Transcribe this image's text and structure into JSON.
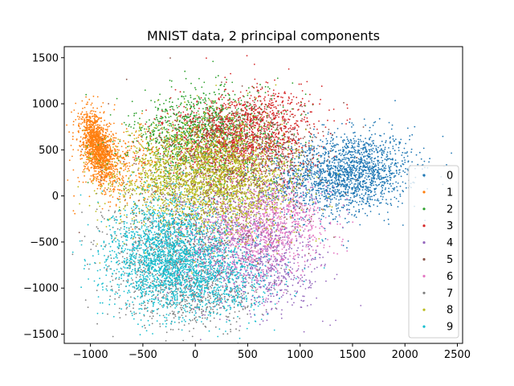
{
  "chart_data": {
    "type": "scatter",
    "title": "MNIST data, 2 principal components",
    "xlabel": "",
    "ylabel": "",
    "xlim": [
      -1250,
      2550
    ],
    "ylim": [
      -1600,
      1620
    ],
    "xticks": [
      -1000,
      -500,
      0,
      500,
      1000,
      1500,
      2000,
      2500
    ],
    "yticks": [
      -1500,
      -1000,
      -500,
      0,
      500,
      1000,
      1500
    ],
    "xtick_labels": [
      "−1000",
      "−500",
      "0",
      "500",
      "1000",
      "1500",
      "2000",
      "2500"
    ],
    "ytick_labels": [
      "−1500",
      "−1000",
      "−500",
      "0",
      "500",
      "1000",
      "1500"
    ],
    "grid": false,
    "legend_position": "lower-right",
    "series": [
      {
        "name": "0",
        "color": "#1f77b4",
        "clusters": [
          {
            "cx": 1500,
            "cy": 260,
            "sx": 300,
            "sy": 210,
            "n": 1500,
            "rot": 0.12
          },
          {
            "cx": 1050,
            "cy": 150,
            "sx": 280,
            "sy": 260,
            "n": 400,
            "rot": 0
          }
        ]
      },
      {
        "name": "1",
        "color": "#ff7f0e",
        "clusters": [
          {
            "cx": -930,
            "cy": 520,
            "sx": 75,
            "sy": 190,
            "n": 1300,
            "rot": 0.25
          },
          {
            "cx": -720,
            "cy": 350,
            "sx": 180,
            "sy": 220,
            "n": 300,
            "rot": 0
          }
        ]
      },
      {
        "name": "2",
        "color": "#2ca02c",
        "clusters": [
          {
            "cx": 80,
            "cy": 700,
            "sx": 330,
            "sy": 220,
            "n": 1100,
            "rot": 0.2
          },
          {
            "cx": 250,
            "cy": 450,
            "sx": 400,
            "sy": 300,
            "n": 300,
            "rot": 0
          }
        ]
      },
      {
        "name": "3",
        "color": "#d62728",
        "clusters": [
          {
            "cx": 380,
            "cy": 620,
            "sx": 330,
            "sy": 240,
            "n": 1300,
            "rot": 0.15
          },
          {
            "cx": 750,
            "cy": 850,
            "sx": 220,
            "sy": 200,
            "n": 250,
            "rot": 0
          }
        ]
      },
      {
        "name": "4",
        "color": "#9467bd",
        "clusters": [
          {
            "cx": 420,
            "cy": -560,
            "sx": 340,
            "sy": 330,
            "n": 900,
            "rot": 0.3
          },
          {
            "cx": 800,
            "cy": -850,
            "sx": 200,
            "sy": 220,
            "n": 250,
            "rot": 0
          }
        ]
      },
      {
        "name": "5",
        "color": "#8c564b",
        "clusters": [
          {
            "cx": 250,
            "cy": 150,
            "sx": 420,
            "sy": 350,
            "n": 800,
            "rot": 0
          },
          {
            "cx": 600,
            "cy": 500,
            "sx": 350,
            "sy": 250,
            "n": 300,
            "rot": 0
          }
        ]
      },
      {
        "name": "6",
        "color": "#e377c2",
        "clusters": [
          {
            "cx": 620,
            "cy": -380,
            "sx": 300,
            "sy": 260,
            "n": 900,
            "rot": 0.2
          },
          {
            "cx": 900,
            "cy": -150,
            "sx": 200,
            "sy": 200,
            "n": 200,
            "rot": 0
          }
        ]
      },
      {
        "name": "7",
        "color": "#7f7f7f",
        "clusters": [
          {
            "cx": -200,
            "cy": -680,
            "sx": 340,
            "sy": 360,
            "n": 1000,
            "rot": -0.5
          },
          {
            "cx": 100,
            "cy": -1100,
            "sx": 260,
            "sy": 160,
            "n": 300,
            "rot": 0
          }
        ]
      },
      {
        "name": "8",
        "color": "#bcbd22",
        "clusters": [
          {
            "cx": 20,
            "cy": 200,
            "sx": 400,
            "sy": 300,
            "n": 2000,
            "rot": 0.1
          },
          {
            "cx": 500,
            "cy": 100,
            "sx": 300,
            "sy": 300,
            "n": 400,
            "rot": 0
          }
        ]
      },
      {
        "name": "9",
        "color": "#17becf",
        "clusters": [
          {
            "cx": -250,
            "cy": -650,
            "sx": 300,
            "sy": 300,
            "n": 2000,
            "rot": -0.55
          },
          {
            "cx": 200,
            "cy": -950,
            "sx": 300,
            "sy": 200,
            "n": 500,
            "rot": 0
          }
        ]
      }
    ]
  }
}
